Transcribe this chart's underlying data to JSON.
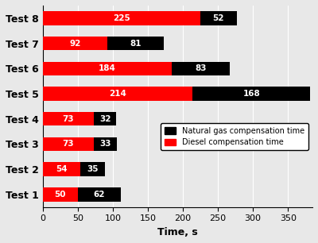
{
  "tests": [
    "Test 1",
    "Test 2",
    "Test 3",
    "Test 4",
    "Test 5",
    "Test 6",
    "Test 7",
    "Test 8"
  ],
  "diesel_values": [
    50,
    54,
    73,
    73,
    214,
    184,
    92,
    225
  ],
  "natural_gas_values": [
    62,
    35,
    33,
    32,
    168,
    83,
    81,
    52
  ],
  "diesel_color": "#FF0000",
  "natural_gas_color": "#000000",
  "xlabel": "Time, s",
  "legend_ng": "Natural gas compensation time",
  "legend_diesel": "Diesel compensation time",
  "xlim": [
    0,
    385
  ],
  "xticks": [
    0,
    50,
    100,
    150,
    200,
    250,
    300,
    350
  ],
  "bar_height": 0.55,
  "label_fontsize": 7.5,
  "axis_fontsize": 9,
  "legend_fontsize": 7.0,
  "tick_fontsize": 8,
  "ylabel_fontsize": 9,
  "background_color": "#e8e8e8"
}
